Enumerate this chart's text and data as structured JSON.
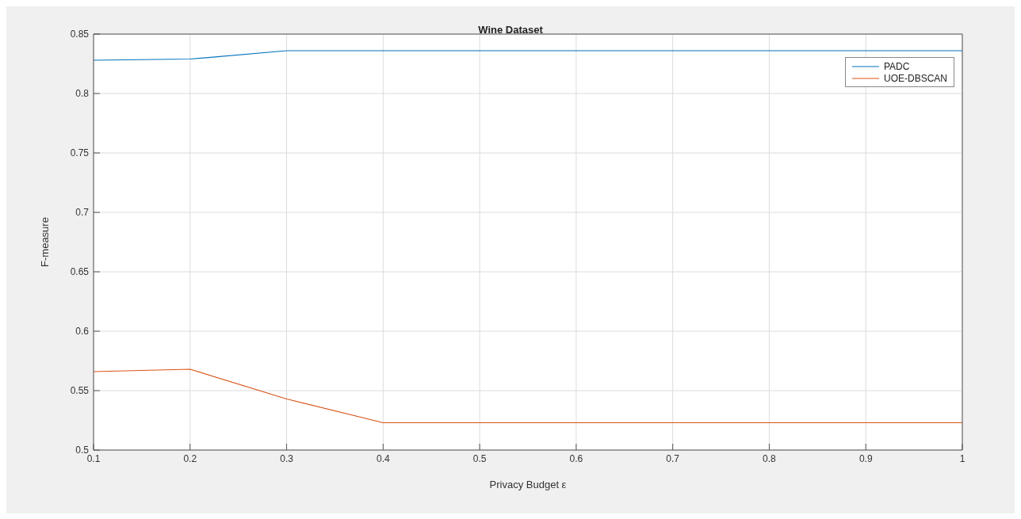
{
  "chart_data": {
    "type": "line",
    "title": "Wine Dataset",
    "xlabel": "Privacy Budget ε",
    "ylabel": "F-measure",
    "x": [
      0.1,
      0.2,
      0.3,
      0.4,
      0.5,
      0.6,
      0.7,
      0.8,
      0.9,
      1
    ],
    "series": [
      {
        "name": "PADC",
        "color": "#0072bd",
        "values": [
          0.828,
          0.829,
          0.836,
          0.836,
          0.836,
          0.836,
          0.836,
          0.836,
          0.836,
          0.836
        ]
      },
      {
        "name": "UOE-DBSCAN",
        "color": "#d95319",
        "values": [
          0.566,
          0.568,
          0.543,
          0.523,
          0.523,
          0.523,
          0.523,
          0.523,
          0.523,
          0.523
        ]
      }
    ],
    "xlim": [
      0.1,
      1
    ],
    "xticks": [
      0.1,
      0.2,
      0.3,
      0.4,
      0.5,
      0.6,
      0.7,
      0.8,
      0.9,
      1
    ],
    "ylim": [
      0.5,
      0.85
    ],
    "yticks": [
      0.5,
      0.55,
      0.6,
      0.65,
      0.7,
      0.75,
      0.8,
      0.85
    ],
    "grid": true,
    "legend": "top right",
    "marker": "none",
    "line_style": "solid"
  }
}
